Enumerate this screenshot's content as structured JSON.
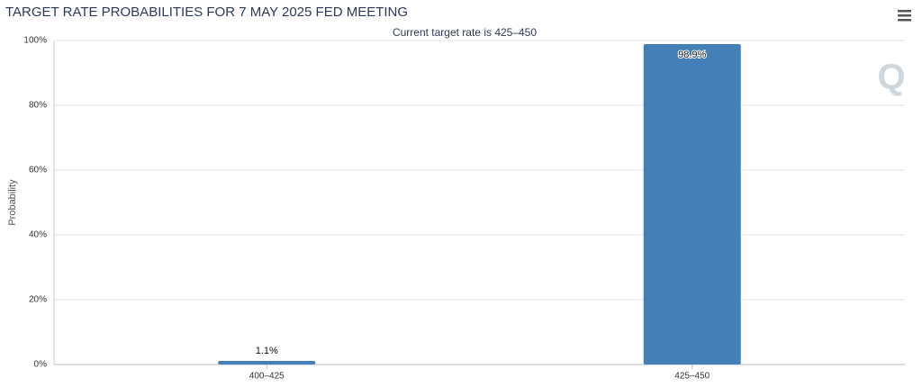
{
  "chart_data": {
    "type": "bar",
    "title": "TARGET RATE PROBABILITIES FOR 7 MAY 2025 FED MEETING",
    "subtitle": "Current target rate is 425–450",
    "y_label": "Probability",
    "categories": [
      "400–425",
      "425–450"
    ],
    "values": [
      1.1,
      98.9
    ],
    "value_labels": [
      "1.1%",
      "98.9%"
    ],
    "color": "#4480b8",
    "ylim": [
      0,
      100
    ],
    "yticks": [
      {
        "value": 0,
        "label": "0%"
      },
      {
        "value": 20,
        "label": "20%"
      },
      {
        "value": 40,
        "label": "40%"
      },
      {
        "value": 60,
        "label": "60%"
      },
      {
        "value": 80,
        "label": "80%"
      },
      {
        "value": 100,
        "label": "100%"
      }
    ],
    "grid": true
  }
}
